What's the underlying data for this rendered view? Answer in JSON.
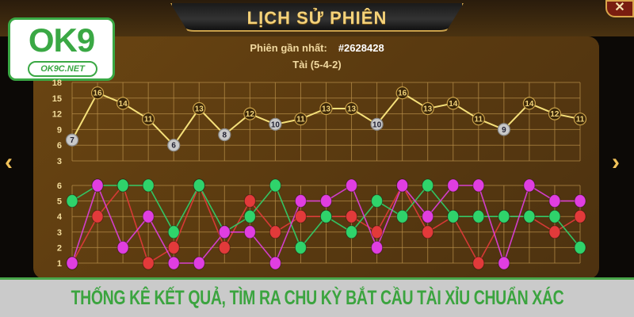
{
  "header": {
    "title": "LỊCH SỬ PHIÊN",
    "close_icon": "close-icon"
  },
  "logo": {
    "brand": "OK9",
    "site": "OK9C.NET"
  },
  "latest": {
    "label": "Phiên gần nhất:",
    "session": "#2628428",
    "result": "Tài (5-4-2)"
  },
  "nav": {
    "prev_icon": "chevron-left-icon",
    "next_icon": "chevron-right-icon"
  },
  "banner": {
    "text": "THỐNG KÊ KẾT QUẢ, TÌM RA CHU KỲ BẮT CẦU TÀI XỈU CHUẨN XÁC"
  },
  "chart_data": [
    {
      "type": "line",
      "ylim": [
        3,
        18
      ],
      "yticks": [
        3,
        6,
        9,
        12,
        15,
        18
      ],
      "grid": true,
      "line_color": "#f5e07a",
      "values": [
        7,
        16,
        14,
        11,
        6,
        13,
        8,
        12,
        10,
        11,
        13,
        13,
        10,
        16,
        13,
        14,
        11,
        9,
        14,
        12,
        11
      ]
    },
    {
      "type": "line",
      "ylim": [
        1,
        6
      ],
      "yticks": [
        1,
        2,
        3,
        4,
        5,
        6
      ],
      "grid": true,
      "series": [
        {
          "color": "#e23a3a",
          "values": [
            1,
            4,
            6,
            1,
            2,
            6,
            2,
            5,
            3,
            4,
            4,
            4,
            3,
            6,
            3,
            4,
            1,
            4,
            4,
            3,
            4
          ]
        },
        {
          "color": "#2fd36b",
          "values": [
            5,
            6,
            6,
            6,
            3,
            6,
            3,
            4,
            6,
            2,
            4,
            3,
            5,
            4,
            6,
            4,
            4,
            4,
            4,
            4,
            2
          ]
        },
        {
          "color": "#e03ee0",
          "values": [
            1,
            6,
            2,
            4,
            1,
            1,
            3,
            3,
            1,
            5,
            5,
            6,
            2,
            6,
            4,
            6,
            6,
            1,
            6,
            5,
            5
          ]
        }
      ]
    }
  ]
}
